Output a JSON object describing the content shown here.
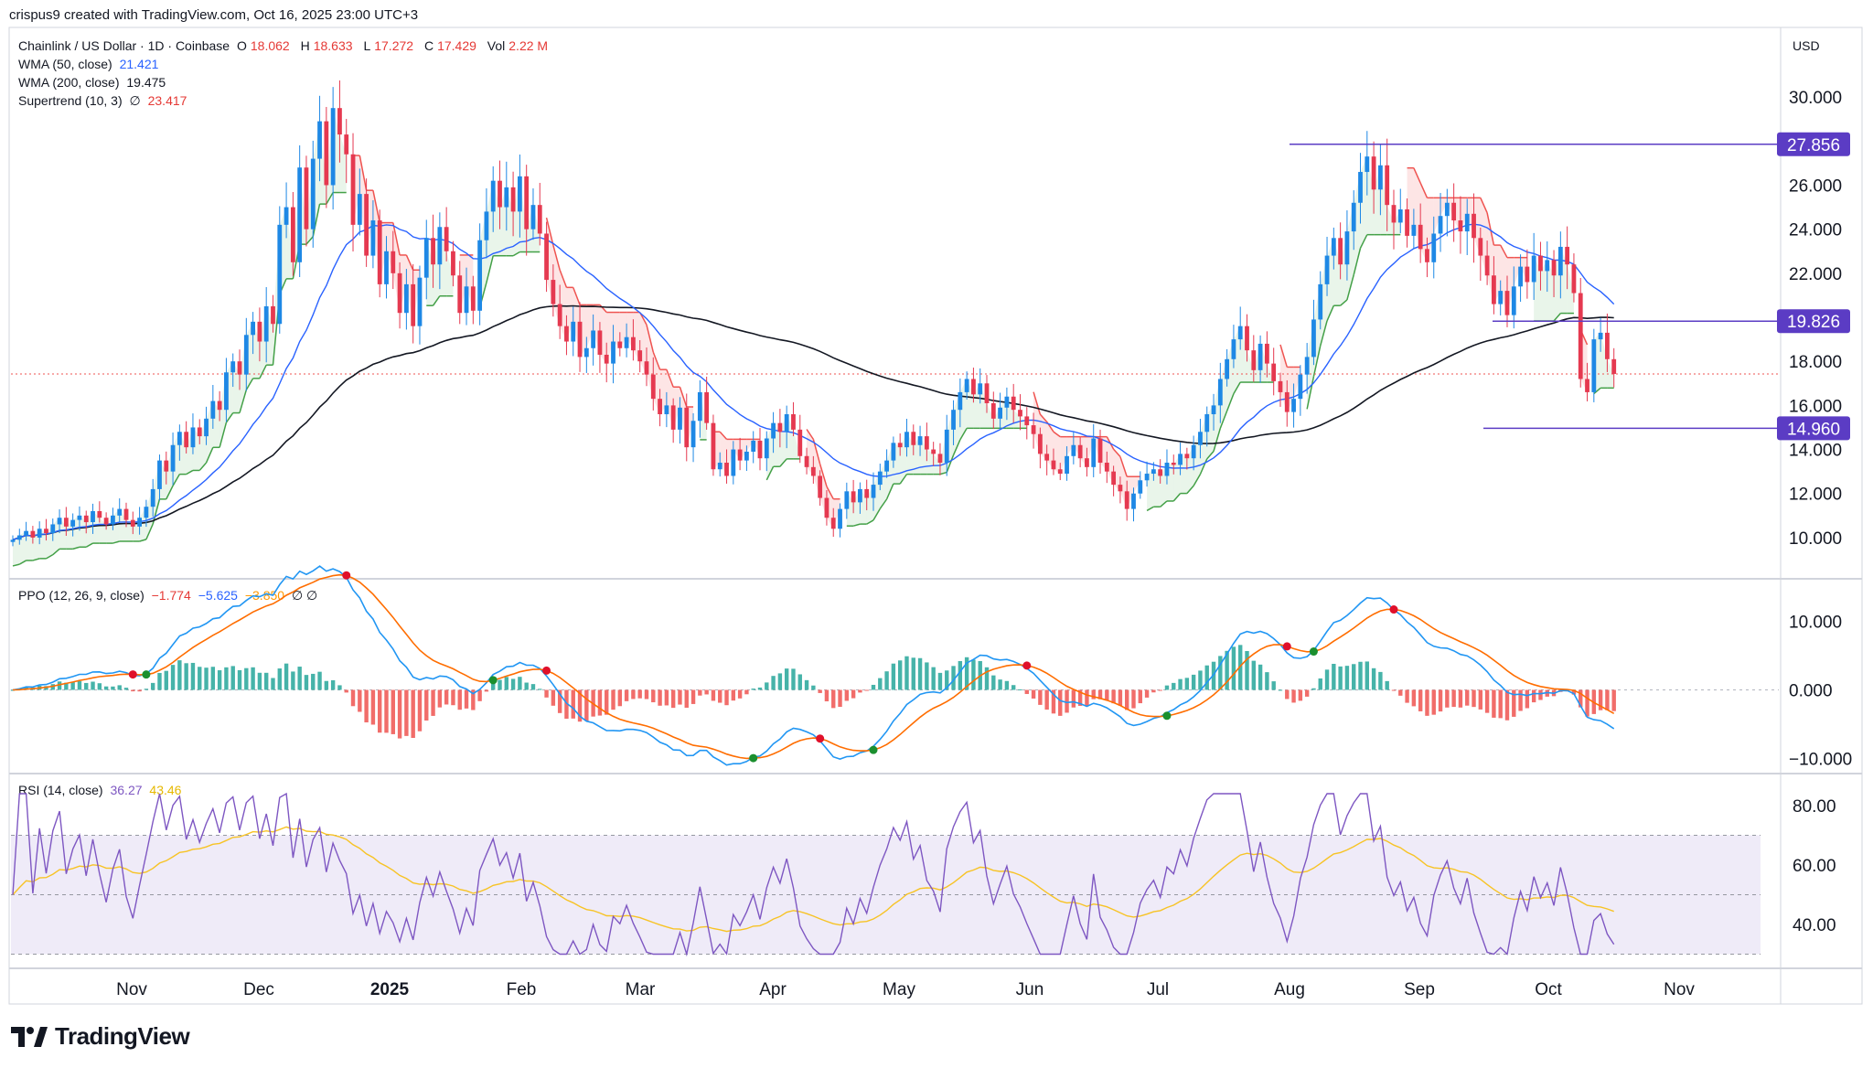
{
  "header": {
    "text": "crispus9 created with TradingView.com, Oct 16, 2025 23:00 UTC+3"
  },
  "main_legend": {
    "title": "Chainlink / US Dollar · 1D · Coinbase",
    "open_label": "O",
    "open": "18.062",
    "high_label": "H",
    "high": "18.633",
    "low_label": "L",
    "low": "17.272",
    "close_label": "C",
    "close": "17.429",
    "vol_label": "Vol",
    "vol": "2.22 M",
    "wma50_label": "WMA (50, close)",
    "wma50": "21.421",
    "wma200_label": "WMA (200, close)",
    "wma200": "19.475",
    "supertrend_label": "Supertrend (10, 3)",
    "supertrend_sym": "∅",
    "supertrend": "23.417"
  },
  "currency": "USD",
  "ppo_legend": {
    "title": "PPO (12, 26, 9, close)",
    "v1": "−1.774",
    "v2": "−5.625",
    "v3": "−3.850",
    "sym": "∅ ∅"
  },
  "rsi_legend": {
    "title": "RSI (14, close)",
    "v1": "36.27",
    "v2": "43.46"
  },
  "footer": {
    "brand": "TradingView"
  },
  "colors": {
    "up": "#26a69a",
    "down": "#ef5350",
    "wma50": "#2962ff",
    "wma200": "#131722",
    "tag": "#5b3cc4",
    "ppo": "#2196f3",
    "signal": "#ff6d00",
    "rsi": "#7e57c2",
    "rsi_ma": "#f7c325"
  },
  "chart_data": [
    {
      "type": "candlestick",
      "title": "Chainlink / US Dollar · 1D · Coinbase",
      "y_ticks": [
        "30.000",
        "26.000",
        "24.000",
        "22.000",
        "18.000",
        "16.000",
        "14.000",
        "12.000",
        "10.000"
      ],
      "ylim": [
        9,
        31.5
      ],
      "x_labels": [
        "Nov",
        "Dec",
        "2025",
        "Feb",
        "Mar",
        "Apr",
        "May",
        "Jun",
        "Jul",
        "Aug",
        "Sep",
        "Oct",
        "Nov"
      ],
      "levels": [
        {
          "label": "27.856",
          "value": 27.856
        },
        {
          "label": "19.826",
          "value": 19.826
        },
        {
          "label": "14.960",
          "value": 14.96
        }
      ],
      "last_close": 17.429,
      "close_series": [
        9.9,
        10.1,
        10.3,
        10.0,
        10.4,
        10.2,
        10.6,
        10.9,
        10.5,
        10.8,
        11.0,
        10.7,
        11.2,
        10.9,
        10.6,
        11.0,
        11.3,
        10.8,
        10.5,
        10.9,
        11.4,
        12.2,
        13.5,
        13.0,
        14.2,
        14.8,
        14.1,
        15.0,
        14.6,
        15.4,
        16.2,
        15.8,
        17.5,
        18.0,
        17.4,
        19.2,
        19.8,
        18.9,
        20.5,
        19.7,
        24.2,
        25.0,
        22.5,
        26.8,
        24.0,
        27.2,
        28.9,
        26.0,
        29.5,
        28.3,
        27.4,
        24.2,
        25.6,
        22.8,
        24.4,
        21.5,
        23.0,
        22.0,
        20.2,
        21.5,
        19.6,
        21.8,
        23.6,
        22.4,
        24.1,
        23.0,
        21.9,
        20.2,
        21.4,
        20.3,
        23.5,
        24.8,
        26.2,
        25.0,
        25.9,
        24.8,
        26.4,
        24.0,
        25.1,
        23.8,
        21.7,
        20.6,
        19.6,
        18.9,
        19.8,
        18.2,
        18.6,
        19.4,
        18.3,
        17.9,
        18.9,
        18.6,
        19.1,
        18.5,
        18.0,
        17.4,
        16.3,
        15.6,
        16.0,
        14.9,
        15.9,
        14.1,
        15.3,
        16.6,
        15.2,
        13.1,
        13.4,
        12.8,
        14.0,
        13.5,
        13.9,
        14.4,
        13.6,
        14.5,
        15.2,
        14.8,
        15.6,
        14.9,
        13.7,
        13.2,
        12.8,
        11.8,
        10.9,
        10.4,
        11.3,
        12.1,
        11.6,
        12.2,
        11.8,
        12.4,
        13.0,
        13.5,
        14.3,
        14.1,
        14.8,
        14.2,
        14.6,
        14.0,
        13.8,
        13.4,
        14.9,
        15.8,
        16.6,
        17.2,
        16.5,
        17.0,
        16.1,
        15.4,
        15.9,
        16.4,
        15.8,
        15.5,
        15.1,
        14.7,
        13.8,
        13.5,
        13.1,
        12.9,
        13.7,
        14.2,
        13.6,
        13.2,
        14.5,
        13.4,
        13.0,
        12.4,
        12.1,
        11.3,
        12.0,
        12.6,
        12.9,
        13.1,
        12.8,
        13.4,
        13.3,
        13.8,
        13.6,
        14.2,
        14.8,
        15.6,
        16.0,
        17.2,
        18.1,
        19.0,
        19.6,
        18.5,
        17.6,
        18.8,
        17.9,
        17.1,
        16.6,
        15.7,
        16.3,
        17.4,
        18.2,
        19.9,
        21.5,
        22.8,
        23.6,
        22.4,
        23.9,
        25.2,
        26.6,
        27.3,
        25.8,
        26.9,
        25.1,
        24.3,
        24.9,
        23.7,
        24.2,
        23.1,
        22.5,
        23.8,
        24.6,
        25.2,
        24.4,
        23.9,
        24.7,
        23.6,
        22.8,
        21.9,
        20.6,
        21.2,
        20.1,
        21.4,
        22.3,
        21.6,
        22.8,
        22.1,
        22.6,
        21.9,
        23.2,
        22.4,
        21.1,
        17.2,
        16.6,
        19.0,
        19.3,
        18.1,
        17.43
      ]
    },
    {
      "type": "line",
      "title": "PPO (12, 26, 9, close)",
      "y_ticks": [
        "10.000",
        "0.000",
        "−10.000"
      ],
      "ylim": [
        -11,
        15
      ]
    },
    {
      "type": "line",
      "title": "RSI (14, close)",
      "y_ticks": [
        "80.00",
        "60.00",
        "40.00"
      ],
      "ylim": [
        28,
        88
      ]
    }
  ]
}
